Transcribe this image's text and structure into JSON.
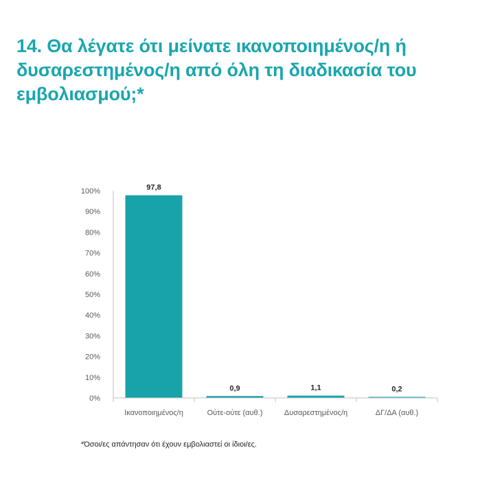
{
  "page": {
    "title": "14. Θα λέγατε ότι μείνατε ικανοποιημένος/η ή δυσαρεστημένος/η από όλη τη διαδικασία του εμβολιασμού;*",
    "footnote": "*Όσοι/ες απάντησαν ότι έχουν εμβολιαστεί οι ίδιοι/ες."
  },
  "colors": {
    "title": "#1aa6ad",
    "bar": "#18a2a9",
    "axis": "#bfbfbf",
    "tick_text": "#595959",
    "label_text": "#262626"
  },
  "chart_data": {
    "type": "bar",
    "categories": [
      "Ικανοποιημένος/η",
      "Ούτε-ούτε (αυθ.)",
      "Δυσαρεστημένος/η",
      "ΔΓ/ΔΑ (αυθ.)"
    ],
    "values": [
      97.8,
      0.9,
      1.1,
      0.2
    ],
    "value_labels": [
      "97,8",
      "0,9",
      "1,1",
      "0,2"
    ],
    "ylim": [
      0,
      100
    ],
    "yticks": [
      0,
      10,
      20,
      30,
      40,
      50,
      60,
      70,
      80,
      90,
      100
    ],
    "ytick_labels": [
      "0%",
      "10%",
      "20%",
      "30%",
      "40%",
      "50%",
      "60%",
      "70%",
      "80%",
      "90%",
      "100%"
    ],
    "grid": false,
    "legend": false
  }
}
